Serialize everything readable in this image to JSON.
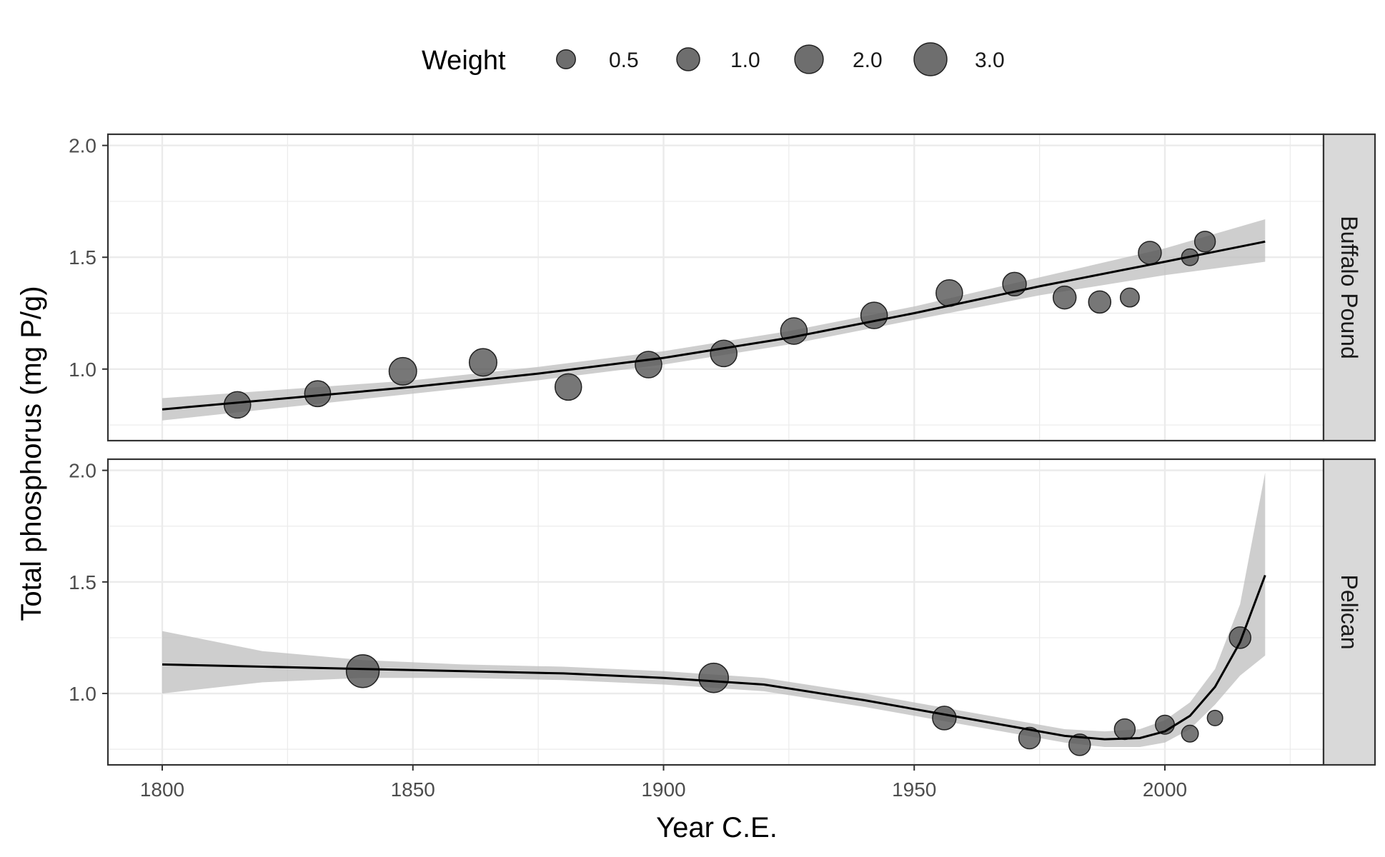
{
  "chart_data": {
    "type": "scatter",
    "xlabel": "Year C.E.",
    "ylabel": "Total phosphorus (mg P/g)",
    "xlim": [
      1789,
      2030
    ],
    "ylim": [
      0.68,
      2.05
    ],
    "x_ticks": [
      1800,
      1850,
      1900,
      1950,
      2000
    ],
    "y_ticks": [
      1.0,
      1.5,
      2.0
    ],
    "grid": true,
    "legend": {
      "title": "Weight",
      "position": "top",
      "items": [
        {
          "label": "0.5",
          "weight": 0.5
        },
        {
          "label": "1.0",
          "weight": 1.0
        },
        {
          "label": "2.0",
          "weight": 2.0
        },
        {
          "label": "3.0",
          "weight": 3.0
        }
      ]
    },
    "colors": {
      "point_fill": "#555555",
      "point_stroke": "#222222",
      "ribbon": "#bdbdbd",
      "line": "#000000",
      "strip": "#d9d9d9",
      "grid": "#ebebeb"
    },
    "panels": [
      {
        "strip": "Buffalo Pound",
        "points": [
          {
            "x": 1815,
            "y": 0.84,
            "w": 1.6
          },
          {
            "x": 1831,
            "y": 0.89,
            "w": 1.5
          },
          {
            "x": 1848,
            "y": 0.99,
            "w": 1.8
          },
          {
            "x": 1864,
            "y": 1.03,
            "w": 1.8
          },
          {
            "x": 1881,
            "y": 0.92,
            "w": 1.6
          },
          {
            "x": 1897,
            "y": 1.02,
            "w": 1.6
          },
          {
            "x": 1912,
            "y": 1.07,
            "w": 1.6
          },
          {
            "x": 1926,
            "y": 1.17,
            "w": 1.6
          },
          {
            "x": 1942,
            "y": 1.24,
            "w": 1.6
          },
          {
            "x": 1957,
            "y": 1.34,
            "w": 1.6
          },
          {
            "x": 1970,
            "y": 1.38,
            "w": 1.1
          },
          {
            "x": 1980,
            "y": 1.32,
            "w": 1.0
          },
          {
            "x": 1987,
            "y": 1.3,
            "w": 0.9
          },
          {
            "x": 1993,
            "y": 1.32,
            "w": 0.5
          },
          {
            "x": 1997,
            "y": 1.52,
            "w": 1.0
          },
          {
            "x": 2005,
            "y": 1.5,
            "w": 0.3
          },
          {
            "x": 2008,
            "y": 1.57,
            "w": 0.7
          }
        ],
        "fit": {
          "x": [
            1800,
            1825,
            1850,
            1875,
            1900,
            1925,
            1950,
            1975,
            2000,
            2020
          ],
          "y": [
            0.82,
            0.87,
            0.92,
            0.98,
            1.05,
            1.14,
            1.25,
            1.37,
            1.48,
            1.57
          ],
          "lower": [
            0.77,
            0.83,
            0.89,
            0.95,
            1.02,
            1.11,
            1.22,
            1.33,
            1.42,
            1.48
          ],
          "upper": [
            0.87,
            0.91,
            0.95,
            1.01,
            1.08,
            1.17,
            1.28,
            1.41,
            1.54,
            1.67
          ]
        }
      },
      {
        "strip": "Pelican",
        "points": [
          {
            "x": 1840,
            "y": 1.1,
            "w": 3.0
          },
          {
            "x": 1910,
            "y": 1.07,
            "w": 2.2
          },
          {
            "x": 1956,
            "y": 0.89,
            "w": 1.1
          },
          {
            "x": 1973,
            "y": 0.8,
            "w": 0.8
          },
          {
            "x": 1983,
            "y": 0.77,
            "w": 0.8
          },
          {
            "x": 1992,
            "y": 0.84,
            "w": 0.7
          },
          {
            "x": 2000,
            "y": 0.86,
            "w": 0.5
          },
          {
            "x": 2005,
            "y": 0.82,
            "w": 0.3
          },
          {
            "x": 2010,
            "y": 0.89,
            "w": 0.2
          },
          {
            "x": 2015,
            "y": 1.25,
            "w": 0.8
          }
        ],
        "fit": {
          "x": [
            1800,
            1820,
            1840,
            1860,
            1880,
            1900,
            1920,
            1940,
            1955,
            1970,
            1980,
            1988,
            1995,
            2000,
            2005,
            2010,
            2015,
            2020
          ],
          "y": [
            1.13,
            1.12,
            1.11,
            1.1,
            1.09,
            1.07,
            1.04,
            0.97,
            0.91,
            0.85,
            0.81,
            0.795,
            0.8,
            0.83,
            0.9,
            1.03,
            1.23,
            1.53
          ],
          "lower": [
            1.0,
            1.05,
            1.07,
            1.07,
            1.06,
            1.04,
            1.01,
            0.94,
            0.88,
            0.82,
            0.78,
            0.76,
            0.76,
            0.78,
            0.84,
            0.95,
            1.08,
            1.17
          ],
          "upper": [
            1.28,
            1.19,
            1.15,
            1.13,
            1.12,
            1.1,
            1.07,
            1.0,
            0.94,
            0.88,
            0.84,
            0.83,
            0.84,
            0.88,
            0.96,
            1.11,
            1.4,
            1.99
          ]
        }
      }
    ]
  }
}
